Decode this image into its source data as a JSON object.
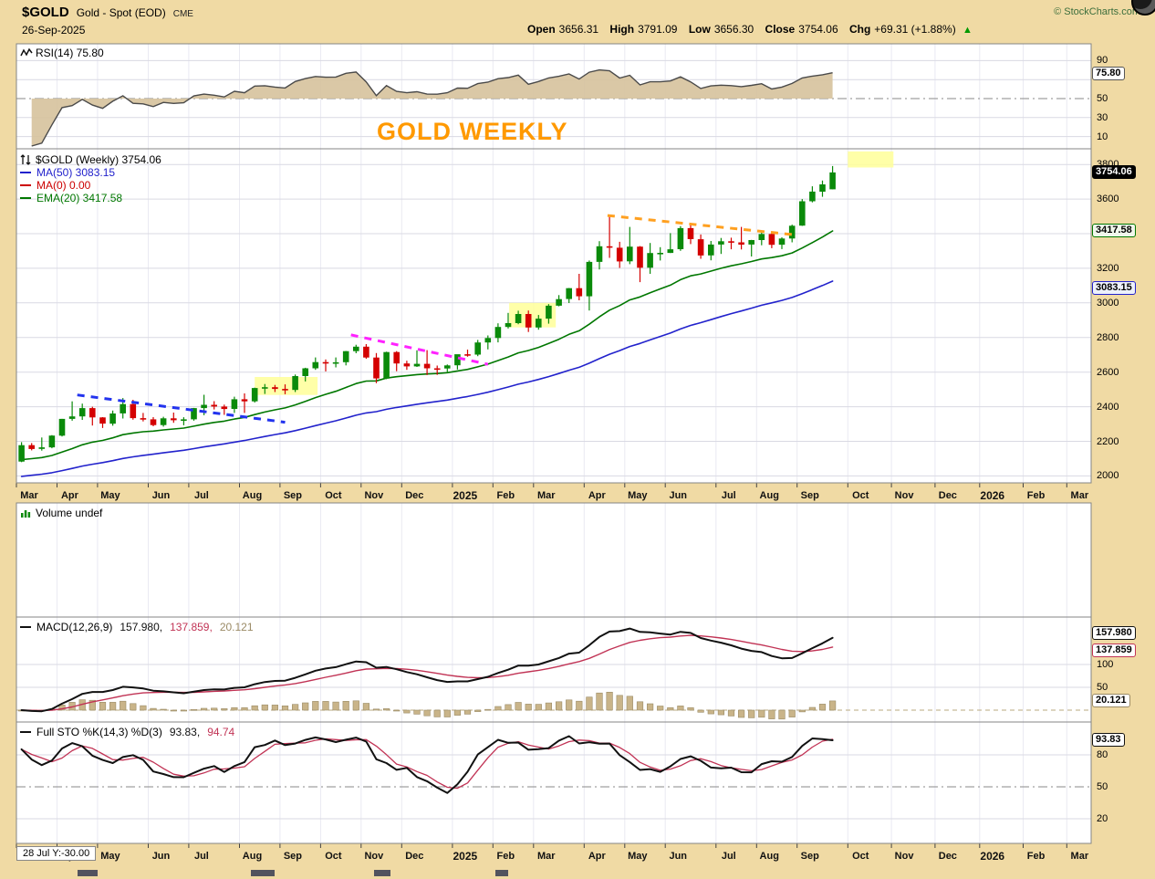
{
  "header": {
    "symbol": "$GOLD",
    "name": "Gold - Spot (EOD)",
    "exchange": "CME",
    "date": "26-Sep-2025",
    "copyright": "© StockCharts.com",
    "quote": {
      "open_label": "Open",
      "open_value": "3656.31",
      "high_label": "High",
      "high_value": "3791.09",
      "low_label": "Low",
      "low_value": "3656.30",
      "close_label": "Close",
      "close_value": "3754.06",
      "chg_label": "Chg",
      "chg_value": "+69.31 (+1.88%)",
      "chg_arrow": "▲"
    }
  },
  "overlay": {
    "watermark": "GOLD WEEKLY",
    "cursor_readout": "28 Jul Y:-30.00"
  },
  "legends": {
    "rsi": "RSI(14) 75.80",
    "price_main": "$GOLD (Weekly) 3754.06",
    "ma50": "MA(50) 3083.15",
    "ma0": "MA(0) 0.00",
    "ema20": "EMA(20) 3417.58",
    "volume": "Volume undef",
    "macd_name": "MACD(12,26,9)",
    "macd_v1": "157.980,",
    "macd_v2": "137.859,",
    "macd_v3": "20.121",
    "sto_name": "Full STO %K(14,3) %D(3)",
    "sto_v1": "93.83,",
    "sto_v2": "94.74"
  },
  "axis_labels": {
    "price": [
      "3800",
      "3600",
      "3400",
      "3200",
      "3000",
      "2800",
      "2600",
      "2400",
      "2200",
      "2000"
    ],
    "rsi": [
      "90",
      "50",
      "30",
      "10"
    ],
    "macd": [
      "100",
      "50"
    ],
    "sto": [
      "80",
      "50",
      "20"
    ]
  },
  "axis_boxes": {
    "rsi_last": "75.80",
    "price_last": "3754.06",
    "ema20_last": "3417.58",
    "ma50_last": "3083.15",
    "macd_last": "157.980",
    "macd_signal_last": "137.859",
    "macd_hist_last": "20.121",
    "sto_last": "93.83"
  },
  "colors": {
    "page_bg": "#F0DAA4",
    "panel_bg": "#FFFFFF",
    "grid": "#D9D9E3",
    "grid_vert": "#EAEAF2",
    "border": "#858585",
    "candle_up": "#0A8A0A",
    "candle_down": "#D40000",
    "ma50": "#2222CC",
    "ema20": "#007700",
    "macd_line": "#111111",
    "macd_signal": "#C13355",
    "macd_hist": "#C9B489",
    "rsi_line": "#4A4A4A",
    "rsi_fill": "#D6C29C",
    "sto_k": "#111111",
    "sto_d": "#C13355",
    "annotation_orange": "#FF9900",
    "trend_blue": "#2233EE",
    "trend_magenta": "#FF22FF",
    "trend_orange": "#FFA020",
    "highlight_yellow": "#FFFF99"
  },
  "chart_data": {
    "type": "candlestick",
    "title": "GOLD WEEKLY",
    "symbol": "$GOLD",
    "period": "Weekly",
    "last_close": 3754.06,
    "x_range": {
      "start": "Mar-2024",
      "end": "Mar-2026",
      "weeks_total": 106
    },
    "y_axis": {
      "min": 1960,
      "max": 3880,
      "tick_step": 200,
      "ticks": [
        2000,
        2200,
        2400,
        2600,
        2800,
        3000,
        3200,
        3400,
        3600,
        3800
      ]
    },
    "month_ticks": [
      {
        "label": "Mar",
        "week": 0
      },
      {
        "label": "Apr",
        "week": 4
      },
      {
        "label": "May",
        "week": 8
      },
      {
        "label": "Jun",
        "week": 13
      },
      {
        "label": "Jul",
        "week": 17
      },
      {
        "label": "Aug",
        "week": 22
      },
      {
        "label": "Sep",
        "week": 26
      },
      {
        "label": "Oct",
        "week": 30
      },
      {
        "label": "Nov",
        "week": 34
      },
      {
        "label": "Dec",
        "week": 38
      },
      {
        "label": "2025",
        "week": 43
      },
      {
        "label": "Feb",
        "week": 47
      },
      {
        "label": "Mar",
        "week": 51
      },
      {
        "label": "Apr",
        "week": 56
      },
      {
        "label": "May",
        "week": 60
      },
      {
        "label": "Jun",
        "week": 64
      },
      {
        "label": "Jul",
        "week": 69
      },
      {
        "label": "Aug",
        "week": 73
      },
      {
        "label": "Sep",
        "week": 77
      },
      {
        "label": "Oct",
        "week": 82
      },
      {
        "label": "Nov",
        "week": 86.3
      },
      {
        "label": "Dec",
        "week": 90.6
      },
      {
        "label": "2026",
        "week": 95
      },
      {
        "label": "Feb",
        "week": 99.3
      },
      {
        "label": "Mar",
        "week": 103.6
      }
    ],
    "candles_ohlc": [
      [
        2083,
        2195,
        2080,
        2178
      ],
      [
        2178,
        2190,
        2148,
        2156
      ],
      [
        2156,
        2222,
        2146,
        2165
      ],
      [
        2165,
        2236,
        2160,
        2233
      ],
      [
        2233,
        2330,
        2228,
        2330
      ],
      [
        2330,
        2431,
        2319,
        2344
      ],
      [
        2344,
        2418,
        2324,
        2392
      ],
      [
        2392,
        2400,
        2291,
        2338
      ],
      [
        2338,
        2340,
        2277,
        2302
      ],
      [
        2302,
        2378,
        2290,
        2361
      ],
      [
        2361,
        2450,
        2332,
        2415
      ],
      [
        2415,
        2440,
        2325,
        2334
      ],
      [
        2334,
        2364,
        2315,
        2327
      ],
      [
        2327,
        2340,
        2287,
        2294
      ],
      [
        2294,
        2342,
        2285,
        2333
      ],
      [
        2333,
        2366,
        2307,
        2322
      ],
      [
        2322,
        2339,
        2293,
        2327
      ],
      [
        2327,
        2393,
        2319,
        2392
      ],
      [
        2392,
        2469,
        2351,
        2411
      ],
      [
        2411,
        2432,
        2384,
        2401
      ],
      [
        2401,
        2412,
        2353,
        2387
      ],
      [
        2387,
        2458,
        2364,
        2443
      ],
      [
        2443,
        2477,
        2364,
        2431
      ],
      [
        2431,
        2510,
        2424,
        2508
      ],
      [
        2508,
        2531,
        2474,
        2513
      ],
      [
        2513,
        2526,
        2485,
        2503
      ],
      [
        2503,
        2529,
        2472,
        2497
      ],
      [
        2497,
        2586,
        2485,
        2577
      ],
      [
        2577,
        2625,
        2546,
        2622
      ],
      [
        2622,
        2685,
        2613,
        2658
      ],
      [
        2658,
        2673,
        2604,
        2653
      ],
      [
        2653,
        2685,
        2627,
        2657
      ],
      [
        2657,
        2722,
        2639,
        2721
      ],
      [
        2721,
        2758,
        2709,
        2747
      ],
      [
        2747,
        2762,
        2677,
        2684
      ],
      [
        2684,
        2710,
        2536,
        2563
      ],
      [
        2563,
        2718,
        2559,
        2716
      ],
      [
        2716,
        2721,
        2605,
        2650
      ],
      [
        2650,
        2666,
        2613,
        2633
      ],
      [
        2633,
        2726,
        2630,
        2648
      ],
      [
        2648,
        2727,
        2583,
        2622
      ],
      [
        2622,
        2638,
        2584,
        2621
      ],
      [
        2621,
        2644,
        2596,
        2639
      ],
      [
        2639,
        2698,
        2615,
        2703
      ],
      [
        2703,
        2730,
        2689,
        2701
      ],
      [
        2701,
        2786,
        2692,
        2771
      ],
      [
        2771,
        2812,
        2731,
        2797
      ],
      [
        2797,
        2882,
        2772,
        2861
      ],
      [
        2861,
        2942,
        2852,
        2883
      ],
      [
        2883,
        2955,
        2877,
        2936
      ],
      [
        2936,
        2956,
        2832,
        2858
      ],
      [
        2858,
        2930,
        2845,
        2909
      ],
      [
        2909,
        2993,
        2880,
        2984
      ],
      [
        2984,
        3045,
        2980,
        3022
      ],
      [
        3022,
        3086,
        2999,
        3085
      ],
      [
        3085,
        3168,
        3015,
        3038
      ],
      [
        3038,
        3245,
        2956,
        3237
      ],
      [
        3237,
        3357,
        3193,
        3327
      ],
      [
        3327,
        3500,
        3260,
        3319
      ],
      [
        3319,
        3353,
        3202,
        3240
      ],
      [
        3240,
        3439,
        3224,
        3325
      ],
      [
        3325,
        3328,
        3120,
        3203
      ],
      [
        3203,
        3346,
        3168,
        3288
      ],
      [
        3288,
        3322,
        3245,
        3289
      ],
      [
        3289,
        3403,
        3288,
        3310
      ],
      [
        3310,
        3444,
        3301,
        3432
      ],
      [
        3432,
        3452,
        3340,
        3368
      ],
      [
        3368,
        3395,
        3255,
        3274
      ],
      [
        3274,
        3358,
        3246,
        3337
      ],
      [
        3337,
        3375,
        3283,
        3356
      ],
      [
        3356,
        3377,
        3310,
        3350
      ],
      [
        3350,
        3439,
        3309,
        3337
      ],
      [
        3337,
        3364,
        3268,
        3363
      ],
      [
        3363,
        3409,
        3333,
        3398
      ],
      [
        3398,
        3407,
        3316,
        3336
      ],
      [
        3336,
        3379,
        3311,
        3372
      ],
      [
        3372,
        3452,
        3350,
        3446
      ],
      [
        3446,
        3600,
        3445,
        3587
      ],
      [
        3587,
        3674,
        3581,
        3643
      ],
      [
        3643,
        3707,
        3613,
        3685
      ],
      [
        3656.31,
        3791.09,
        3656.3,
        3754.06
      ]
    ],
    "indicators": {
      "rsi": {
        "label": "RSI(14)",
        "last": 75.8,
        "gridlines": [
          90,
          70,
          50,
          30,
          10
        ]
      },
      "ma50_last": 3083.15,
      "ma0_last": 0.0,
      "ema20_last": 3417.58,
      "volume": "undef",
      "macd": {
        "label": "MACD(12,26,9)",
        "last": 157.98,
        "signal_last": 137.859,
        "hist_last": 20.121,
        "gridlines": [
          100,
          50,
          0
        ]
      },
      "full_sto": {
        "label": "Full STO %K(14,3) %D(3)",
        "k_last": 93.83,
        "d_last": 94.74,
        "gridlines": [
          80,
          50,
          20
        ]
      }
    },
    "annotations": {
      "trendlines": [
        {
          "color_key": "trend_blue",
          "w1": 6,
          "p1": 2468,
          "w2": 26.5,
          "p2": 2310
        },
        {
          "color_key": "trend_magenta",
          "w1": 33,
          "p1": 2815,
          "w2": 46.5,
          "p2": 2645
        },
        {
          "color_key": "trend_orange",
          "w1": 58.3,
          "p1": 3505,
          "w2": 77,
          "p2": 3392
        }
      ],
      "highlights": [
        {
          "w1": 23.5,
          "w2": 29.7,
          "p1": 2468,
          "p2": 2572
        },
        {
          "w1": 48.6,
          "w2": 53.2,
          "p1": 2858,
          "p2": 3000
        },
        {
          "w1": 82,
          "w2": 86.5,
          "p1": 3782,
          "p2": 3875
        }
      ]
    }
  },
  "misc": {
    "bottom_fragments": [
      [
        85,
        22
      ],
      [
        275,
        26
      ],
      [
        410,
        18
      ],
      [
        543,
        14
      ]
    ]
  }
}
